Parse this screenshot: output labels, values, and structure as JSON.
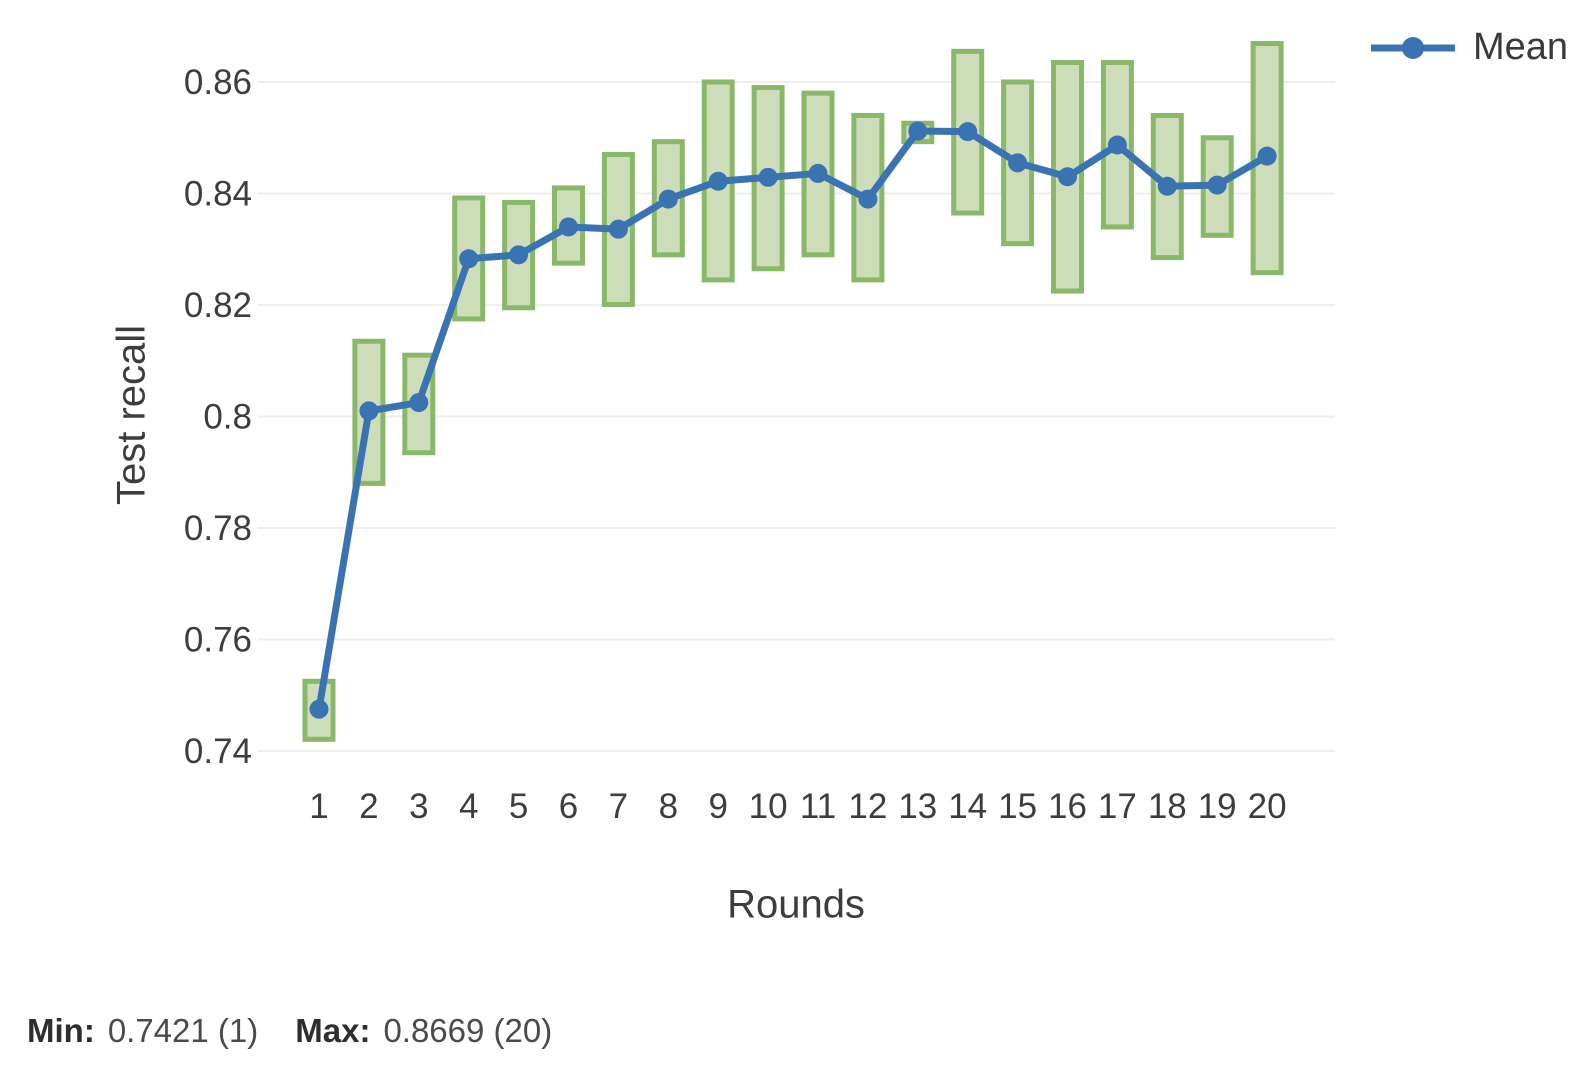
{
  "chart_data": {
    "type": "line",
    "title": "",
    "xlabel": "Rounds",
    "ylabel": "Test recall",
    "grid": true,
    "ylim": [
      0.735,
      0.872
    ],
    "legend": {
      "position": "top-right",
      "entries": [
        "Mean"
      ]
    },
    "categories": [
      "1",
      "2",
      "3",
      "4",
      "5",
      "6",
      "7",
      "8",
      "9",
      "10",
      "11",
      "12",
      "13",
      "14",
      "15",
      "16",
      "17",
      "18",
      "19",
      "20"
    ],
    "series": [
      {
        "name": "Mean",
        "values": [
          0.7475,
          0.801,
          0.8025,
          0.8283,
          0.829,
          0.834,
          0.8336,
          0.839,
          0.8422,
          0.8429,
          0.8436,
          0.839,
          0.8512,
          0.8511,
          0.8455,
          0.843,
          0.8487,
          0.8413,
          0.8415,
          0.8467
        ]
      }
    ],
    "range_band": {
      "name": "min-max range",
      "min": [
        0.7421,
        0.788,
        0.7935,
        0.8175,
        0.8195,
        0.8275,
        0.8201,
        0.829,
        0.8245,
        0.8265,
        0.829,
        0.8245,
        0.8493,
        0.8365,
        0.831,
        0.8225,
        0.834,
        0.8285,
        0.8325,
        0.8258
      ],
      "max": [
        0.7525,
        0.8135,
        0.811,
        0.8392,
        0.8384,
        0.841,
        0.847,
        0.8493,
        0.86,
        0.859,
        0.858,
        0.854,
        0.8526,
        0.8655,
        0.86,
        0.8635,
        0.8635,
        0.854,
        0.85,
        0.8669
      ]
    },
    "yticks": [
      {
        "value": 0.86,
        "label": "0.86"
      },
      {
        "value": 0.84,
        "label": "0.84"
      },
      {
        "value": 0.82,
        "label": "0.82"
      },
      {
        "value": 0.8,
        "label": "0.8"
      },
      {
        "value": 0.78,
        "label": "0.78"
      },
      {
        "value": 0.76,
        "label": "0.76"
      },
      {
        "value": 0.74,
        "label": "0.74"
      }
    ]
  },
  "footer": {
    "min_label": "Min:",
    "min_value": "0.7421 (1)",
    "max_label": "Max:",
    "max_value": "0.8669 (20)"
  },
  "colors": {
    "mean_line": "#3973b2",
    "range_fill": "#cddcb9",
    "range_stroke": "#8ab869",
    "grid": "#eeeeee",
    "tick_text": "#3d3d3d"
  }
}
